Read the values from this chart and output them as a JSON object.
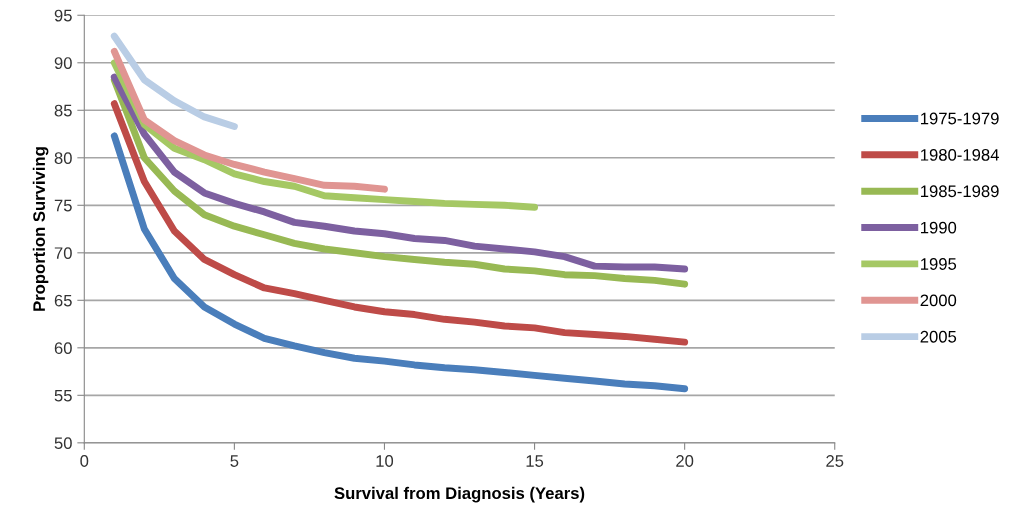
{
  "chart_data": {
    "type": "line",
    "xlabel": "Survival from Diagnosis (Years)",
    "ylabel": "Proportion Surviving",
    "x": [
      1,
      2,
      3,
      4,
      5,
      6,
      7,
      8,
      9,
      10,
      11,
      12,
      13,
      14,
      15,
      16,
      17,
      18,
      19,
      20
    ],
    "xlim": [
      0,
      25
    ],
    "xticks": [
      0,
      5,
      10,
      15,
      20,
      25
    ],
    "ylim": [
      50,
      95
    ],
    "yticks": [
      50,
      55,
      60,
      65,
      70,
      75,
      80,
      85,
      90,
      95
    ],
    "grid": "y",
    "legend": "right",
    "marker": "none",
    "line_style": "solid",
    "series": [
      {
        "name": "1975-1979",
        "color": "#4a7ebb",
        "values": [
          82.3,
          72.5,
          67.3,
          64.3,
          62.5,
          61.0,
          60.2,
          59.5,
          58.9,
          58.6,
          58.2,
          57.9,
          57.7,
          57.4,
          57.1,
          56.8,
          56.5,
          56.2,
          56.0,
          55.7
        ]
      },
      {
        "name": "1980-1984",
        "color": "#be4b48",
        "values": [
          85.7,
          77.5,
          72.3,
          69.3,
          67.7,
          66.3,
          65.7,
          65.0,
          64.3,
          63.8,
          63.5,
          63.0,
          62.7,
          62.3,
          62.1,
          61.6,
          61.4,
          61.2,
          60.9,
          60.6
        ]
      },
      {
        "name": "1985-1989",
        "color": "#98b954",
        "values": [
          88.2,
          80.0,
          76.5,
          74.0,
          72.8,
          71.9,
          71.0,
          70.4,
          70.0,
          69.6,
          69.3,
          69.0,
          68.8,
          68.3,
          68.1,
          67.7,
          67.6,
          67.3,
          67.1,
          66.7
        ]
      },
      {
        "name": "1990",
        "color": "#7d60a0",
        "values": [
          88.5,
          82.5,
          78.5,
          76.3,
          75.2,
          74.3,
          73.2,
          72.8,
          72.3,
          72.0,
          71.5,
          71.3,
          70.7,
          70.4,
          70.1,
          69.6,
          68.6,
          68.5,
          68.5,
          68.3
        ]
      },
      {
        "name": "1995",
        "color": "#a5c864",
        "values": [
          90.0,
          83.5,
          81.0,
          79.8,
          78.3,
          77.5,
          77.0,
          76.0,
          75.8,
          75.6,
          75.4,
          75.2,
          75.1,
          75.0,
          74.8,
          null,
          null,
          null,
          null,
          null
        ]
      },
      {
        "name": "2000",
        "color": "#e09592",
        "values": [
          91.2,
          84.0,
          81.8,
          80.3,
          79.3,
          78.5,
          77.8,
          77.1,
          77.0,
          76.7,
          null,
          null,
          null,
          null,
          null,
          null,
          null,
          null,
          null,
          null
        ]
      },
      {
        "name": "2005",
        "color": "#b9cde5",
        "values": [
          92.8,
          88.2,
          86.0,
          84.3,
          83.3,
          null,
          null,
          null,
          null,
          null,
          null,
          null,
          null,
          null,
          null,
          null,
          null,
          null,
          null,
          null
        ]
      }
    ]
  }
}
